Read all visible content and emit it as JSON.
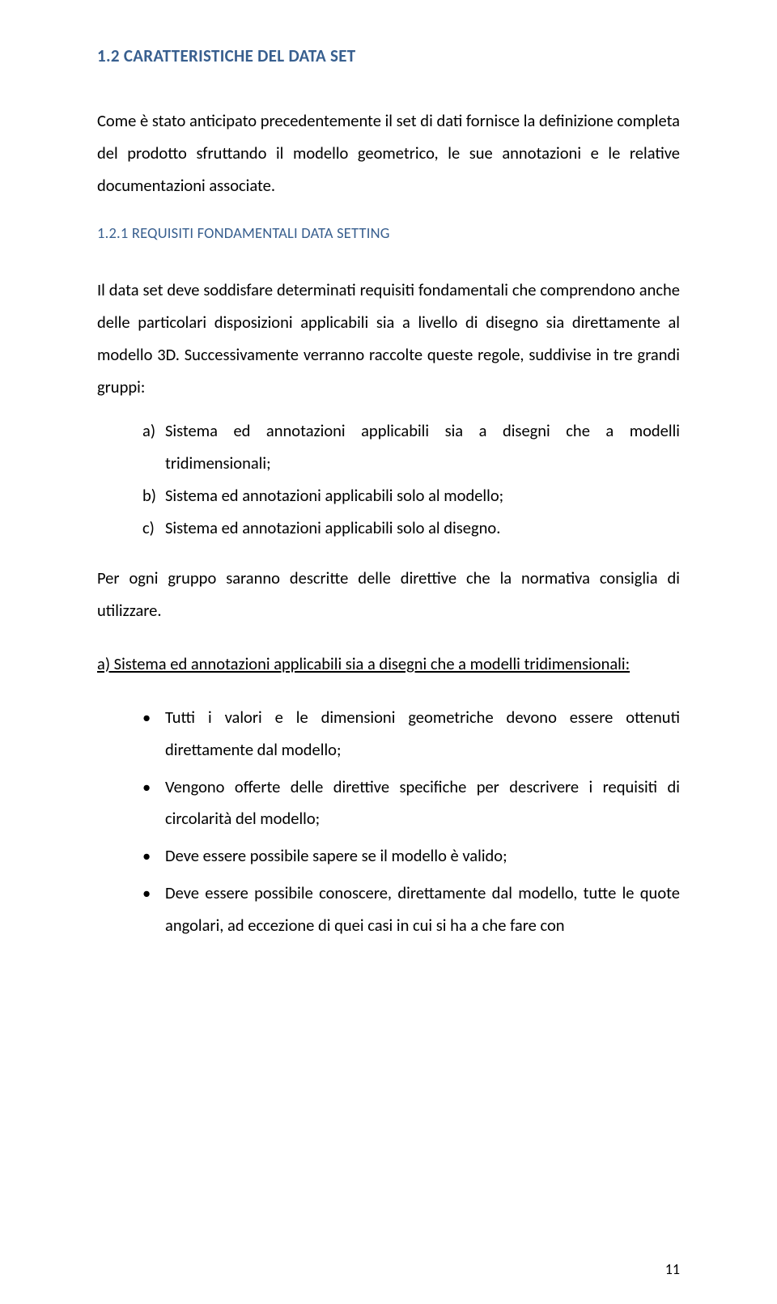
{
  "heading1": "1.2 CARATTERISTICHE DEL DATA SET",
  "para1": "Come è stato anticipato precedentemente il set di dati fornisce la definizione completa del prodotto sfruttando il modello geometrico, le sue annotazioni e le relative documentazioni associate.",
  "heading2": "1.2.1 REQUISITI FONDAMENTALI DATA SETTING",
  "para2": "Il data set deve soddisfare determinati requisiti fondamentali che comprendono anche delle particolari disposizioni applicabili sia a livello di disegno sia direttamente al modello 3D. Successivamente verranno raccolte queste regole, suddivise in tre grandi gruppi:",
  "listAlpha": [
    {
      "marker": "a)",
      "text": "Sistema ed annotazioni applicabili sia a disegni che a modelli tridimensionali;"
    },
    {
      "marker": "b)",
      "text": "Sistema ed annotazioni applicabili solo al modello;"
    },
    {
      "marker": "c)",
      "text": "Sistema ed annotazioni applicabili solo al disegno."
    }
  ],
  "para3": "Per ogni gruppo saranno descritte delle direttive che la normativa consiglia di utilizzare.",
  "underlined": "a) Sistema ed annotazioni applicabili sia a disegni che a modelli tridimensionali:",
  "bullets": [
    "Tutti i valori e le dimensioni geometriche devono essere ottenuti direttamente dal modello;",
    "Vengono offerte delle direttive specifiche per descrivere i requisiti di circolarità del modello;",
    "Deve essere possibile sapere se il modello è valido;",
    "Deve essere possibile conoscere, direttamente dal modello, tutte le quote angolari, ad eccezione di quei casi in cui si ha a che fare con"
  ],
  "pageNumber": "11"
}
